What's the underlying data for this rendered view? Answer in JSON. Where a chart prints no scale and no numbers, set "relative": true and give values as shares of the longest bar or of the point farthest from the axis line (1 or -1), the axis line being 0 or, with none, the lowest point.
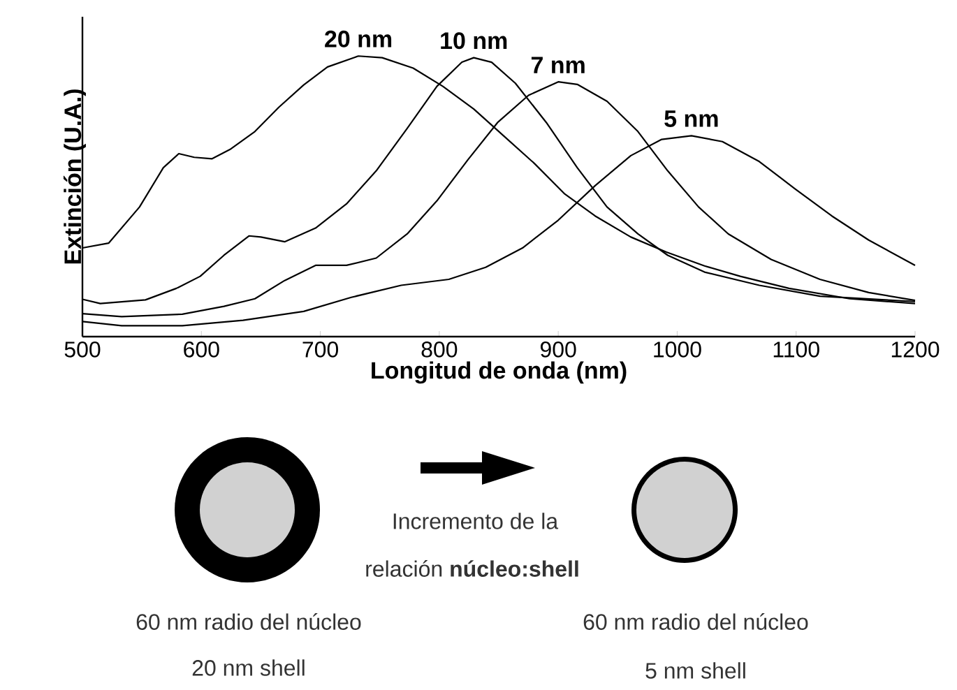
{
  "chart_data": {
    "type": "line",
    "relative": true,
    "xlabel": "Longitud de onda (nm)",
    "ylabel": "Extinción (U.A.)",
    "xlim": [
      500,
      1200
    ],
    "xticks": [
      500,
      600,
      700,
      800,
      900,
      1000,
      1100,
      1200
    ],
    "series": [
      {
        "name": "20 nm",
        "color": "#000000",
        "x": [
          500,
          522,
          548,
          568,
          581,
          594,
          609,
          624,
          645,
          665,
          686,
          706,
          732,
          752,
          778,
          803,
          829,
          854,
          880,
          905,
          931,
          961,
          991,
          1023,
          1053,
          1094,
          1145,
          1200
        ],
        "values": [
          0.316,
          0.333,
          0.462,
          0.602,
          0.652,
          0.639,
          0.634,
          0.667,
          0.731,
          0.817,
          0.897,
          0.961,
          1.0,
          0.994,
          0.957,
          0.892,
          0.811,
          0.716,
          0.617,
          0.51,
          0.43,
          0.355,
          0.301,
          0.252,
          0.215,
          0.172,
          0.135,
          0.118
        ]
      },
      {
        "name": "10 nm",
        "color": "#000000",
        "x": [
          500,
          515,
          553,
          579,
          599,
          619,
          640,
          650,
          670,
          696,
          722,
          747,
          773,
          798,
          819,
          829,
          844,
          864,
          890,
          916,
          941,
          967,
          992,
          1023,
          1069,
          1120,
          1200
        ],
        "values": [
          0.133,
          0.118,
          0.131,
          0.172,
          0.215,
          0.29,
          0.359,
          0.355,
          0.338,
          0.387,
          0.473,
          0.591,
          0.742,
          0.892,
          0.978,
          0.994,
          0.978,
          0.903,
          0.763,
          0.602,
          0.462,
          0.366,
          0.29,
          0.23,
          0.183,
          0.144,
          0.125
        ]
      },
      {
        "name": "7 nm",
        "color": "#000000",
        "x": [
          500,
          533,
          584,
          619,
          645,
          670,
          696,
          722,
          747,
          773,
          798,
          824,
          849,
          875,
          900,
          916,
          941,
          967,
          992,
          1018,
          1043,
          1079,
          1120,
          1161,
          1200
        ],
        "values": [
          0.082,
          0.071,
          0.08,
          0.108,
          0.135,
          0.2,
          0.254,
          0.254,
          0.28,
          0.366,
          0.484,
          0.63,
          0.763,
          0.86,
          0.908,
          0.899,
          0.839,
          0.731,
          0.591,
          0.462,
          0.366,
          0.275,
          0.204,
          0.157,
          0.129
        ]
      },
      {
        "name": "5 nm",
        "color": "#000000",
        "x": [
          500,
          533,
          584,
          635,
          686,
          726,
          768,
          808,
          839,
          870,
          900,
          931,
          961,
          987,
          1012,
          1038,
          1069,
          1099,
          1130,
          1161,
          1200
        ],
        "values": [
          0.054,
          0.039,
          0.039,
          0.058,
          0.09,
          0.14,
          0.183,
          0.204,
          0.247,
          0.316,
          0.415,
          0.538,
          0.645,
          0.703,
          0.716,
          0.695,
          0.624,
          0.527,
          0.43,
          0.344,
          0.254
        ]
      }
    ],
    "annotations": [
      "Incremento de la",
      "relación **núcleo:shell**",
      "60 nm radio del núcleo",
      "20 nm shell",
      "60 nm radio del núcleo",
      "5 nm shell"
    ]
  }
}
